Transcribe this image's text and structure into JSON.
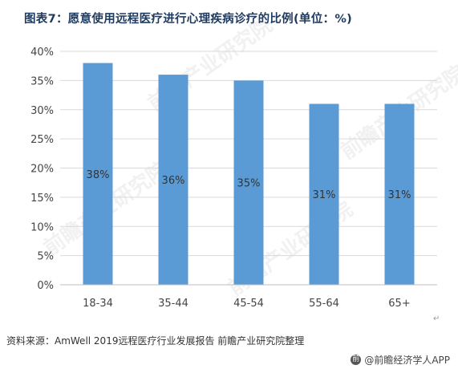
{
  "title": "图表7：愿意使用远程医疗进行心理疾病诊疗的比例(单位：%)",
  "source": "资料来源：AmWell 2019远程医疗行业发展报告 前瞻产业研究院整理",
  "brand": "@前瞻经济学人APP",
  "brand_icon": "logo-icon",
  "watermark": "前瞻产业研究院",
  "colors": {
    "bar": "#5b9bd5",
    "grid": "#d9d9d9",
    "title": "#1f3a5f"
  },
  "chart_data": {
    "type": "bar",
    "categories": [
      "18-34",
      "35-44",
      "45-54",
      "55-64",
      "65+"
    ],
    "values": [
      38,
      36,
      35,
      31,
      31
    ],
    "data_labels": [
      "38%",
      "36%",
      "35%",
      "31%",
      "31%"
    ],
    "yticks": [
      "0%",
      "5%",
      "10%",
      "15%",
      "20%",
      "25%",
      "30%",
      "35%",
      "40%"
    ],
    "ylim": [
      0,
      40
    ],
    "grid": true,
    "legend": "none"
  }
}
